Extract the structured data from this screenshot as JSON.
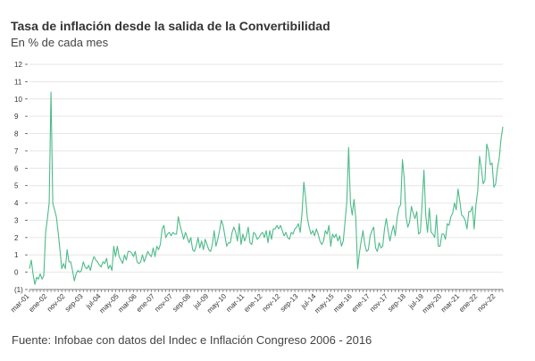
{
  "title": "Tasa de inflación desde la salida de la Convertibilidad",
  "subtitle": "En % de cada mes",
  "source": "Fuente: Infobae con datos del Indec e Inflación Congreso 2006 - 2016",
  "colors": {
    "line": "#4dbb8a",
    "grid": "#e6e6e6",
    "axis": "#555555",
    "text": "#333333"
  },
  "chart_data": {
    "type": "line",
    "title": "Tasa de inflación desde la salida de la Convertibilidad",
    "subtitle": "En % de cada mes",
    "xlabel": "",
    "ylabel": "",
    "ylim": [
      -1,
      12
    ],
    "yticks": [
      {
        "value": 12,
        "label": "12"
      },
      {
        "value": 11,
        "label": "11"
      },
      {
        "value": 10,
        "label": "10"
      },
      {
        "value": 9,
        "label": "9"
      },
      {
        "value": 8,
        "label": "8"
      },
      {
        "value": 7,
        "label": "7"
      },
      {
        "value": 6,
        "label": "6"
      },
      {
        "value": 5,
        "label": "5"
      },
      {
        "value": 4,
        "label": "4"
      },
      {
        "value": 3,
        "label": "3"
      },
      {
        "value": 2,
        "label": "2"
      },
      {
        "value": 1,
        "label": "1"
      },
      {
        "value": 0,
        "label": "0"
      },
      {
        "value": -1,
        "label": "(1)"
      }
    ],
    "grid": true,
    "xticklabels": [
      "mar-01",
      "ene-02",
      "nov-02",
      "sep-03",
      "jul-04",
      "may-05",
      "mar-06",
      "ene-07",
      "nov-07",
      "sep-08",
      "jul-09",
      "may-10",
      "mar-11",
      "ene-12",
      "nov-12",
      "sep-13",
      "jul-14",
      "may-15",
      "mar-16",
      "ene-17",
      "nov-17",
      "sep-18",
      "jul-19",
      "may-20",
      "mar-21",
      "ene-22",
      "nov-22"
    ],
    "series": [
      {
        "start": "2001-03",
        "values": [
          0.2,
          0.7,
          -0.1,
          -0.7,
          -0.3,
          -0.4,
          -0.1,
          -0.4,
          -0.2,
          2.3,
          3.1,
          4.0,
          10.4,
          4.0,
          3.6,
          3.2,
          2.3,
          1.3,
          0.2,
          0.5,
          0.2,
          1.3,
          0.6,
          0.6,
          0.1,
          -0.5,
          -0.1,
          0.1,
          0.0,
          0.1,
          0.6,
          0.3,
          0.2,
          0.4,
          0.1,
          0.6,
          0.9,
          0.7,
          0.6,
          0.4,
          0.3,
          0.6,
          0.5,
          0.8,
          0.2,
          0.4,
          0.1,
          1.5,
          0.9,
          1.5,
          0.9,
          0.7,
          0.5,
          1.0,
          0.7,
          1.2,
          1.2,
          1.1,
          0.9,
          1.2,
          0.6,
          0.5,
          0.6,
          1.0,
          0.6,
          0.9,
          1.2,
          1.0,
          0.9,
          1.4,
          0.9,
          1.5,
          1.3,
          1.6,
          2.5,
          2.7,
          2.0,
          2.2,
          2.3,
          2.1,
          2.3,
          2.2,
          2.2,
          3.2,
          2.7,
          2.3,
          1.9,
          2.3,
          2.0,
          1.7,
          2.0,
          1.3,
          1.2,
          1.5,
          2.0,
          1.4,
          1.8,
          1.3,
          1.9,
          1.6,
          1.3,
          1.2,
          1.6,
          2.4,
          1.5,
          1.9,
          2.4,
          3.0,
          2.7,
          2.1,
          1.5,
          1.7,
          1.7,
          2.3,
          2.6,
          2.3,
          1.8,
          2.8,
          1.6,
          2.2,
          1.8,
          2.1,
          2.6,
          1.7,
          1.6,
          2.3,
          2.2,
          1.9,
          2.0,
          2.2,
          2.3,
          2.0,
          2.4,
          1.7,
          2.4,
          1.9,
          2.5,
          2.5,
          2.7,
          2.5,
          2.7,
          2.4,
          2.1,
          2.3,
          2.0,
          1.9,
          2.3,
          2.2,
          2.5,
          2.6,
          2.8,
          2.3,
          3.4,
          5.2,
          4.3,
          3.1,
          2.6,
          2.2,
          2.4,
          2.1,
          2.5,
          2.2,
          1.8,
          1.6,
          1.8,
          2.4,
          2.2,
          2.7,
          1.5,
          2.2,
          2.0,
          2.2,
          1.8,
          2.1,
          1.5,
          1.8,
          2.9,
          4.1,
          7.2,
          4.0,
          3.3,
          4.2,
          3.1,
          0.2,
          1.1,
          1.8,
          2.4,
          1.6,
          1.2,
          1.3,
          2.1,
          2.4,
          2.6,
          1.4,
          1.2,
          1.7,
          1.4,
          1.5,
          2.5,
          3.1,
          2.4,
          1.8,
          2.3,
          2.7,
          2.1,
          3.1,
          3.7,
          3.9,
          6.5,
          5.4,
          3.2,
          2.6,
          2.9,
          3.8,
          3.4,
          3.1,
          3.5,
          2.2,
          2.3,
          4.0,
          5.9,
          3.3,
          2.3,
          3.7,
          2.3,
          2.2,
          2.0,
          3.3,
          1.5,
          1.5,
          2.2,
          2.2,
          1.9,
          2.8,
          2.7,
          3.2,
          3.4,
          4.0,
          3.6,
          4.8,
          4.1,
          3.3,
          3.2,
          3.0,
          2.5,
          3.5,
          3.5,
          3.8,
          2.5,
          3.9,
          4.7,
          6.7,
          6.0,
          5.1,
          5.3,
          7.4,
          7.0,
          6.2,
          6.3,
          4.9,
          5.1,
          6.0,
          6.6,
          7.7,
          8.4
        ]
      }
    ]
  }
}
